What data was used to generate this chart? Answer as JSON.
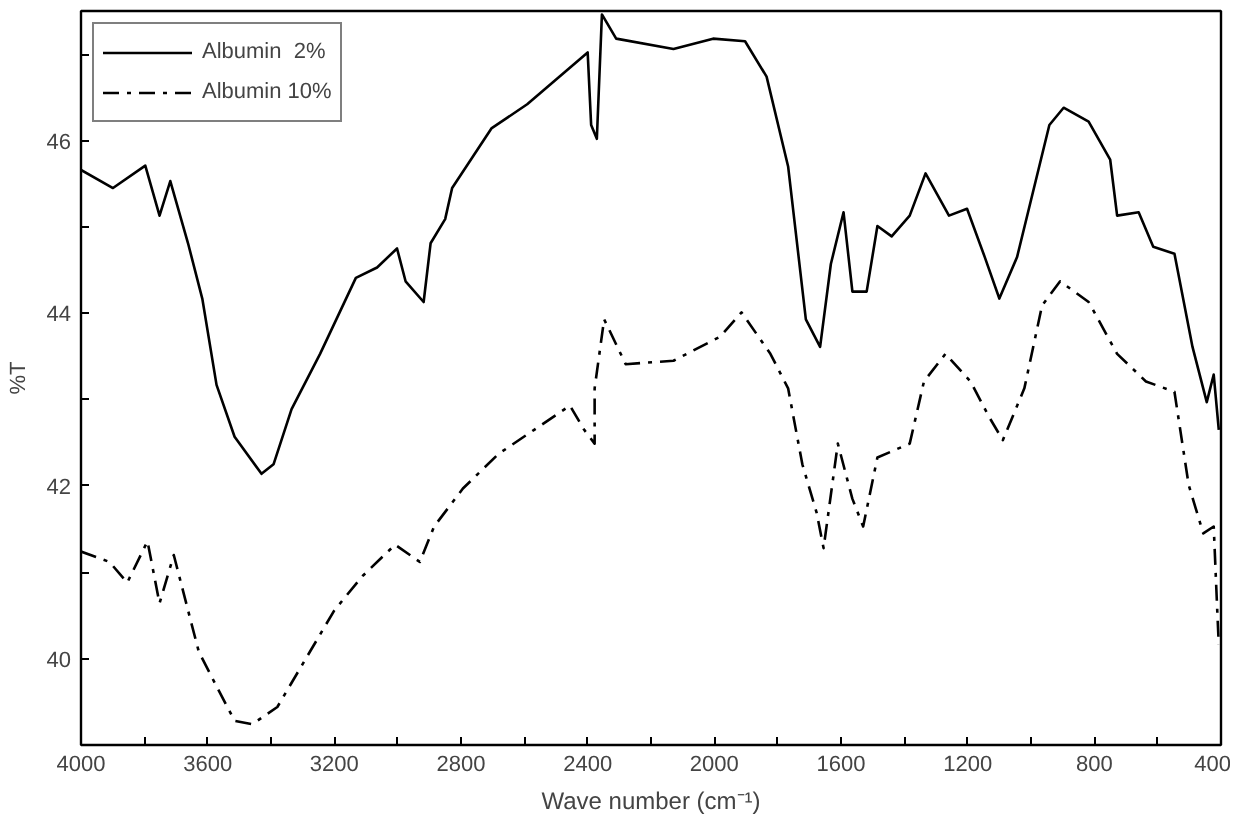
{
  "chart_data": {
    "type": "line",
    "xlabel": "Wave number (cm⁻¹)",
    "ylabel": "%T",
    "xlim": [
      4000,
      400
    ],
    "ylim": [
      39,
      47.5
    ],
    "xticks": [
      4000,
      {
        "value": 3800,
        "label": null
      },
      3600,
      {
        "value": 3400,
        "label": null
      },
      3200,
      {
        "value": 3000,
        "label": null
      },
      2800,
      {
        "value": 2600,
        "label": null
      },
      2400,
      {
        "value": 2200,
        "label": null
      },
      2000,
      {
        "value": 1800,
        "label": null
      },
      1600,
      {
        "value": 1400,
        "label": null
      },
      1200,
      {
        "value": 1000,
        "label": null
      },
      800,
      {
        "value": 600,
        "label": null
      },
      400
    ],
    "yticks": [
      40,
      {
        "value": 41,
        "label": null
      },
      42,
      {
        "value": 43,
        "label": null
      },
      44,
      {
        "value": 45,
        "label": null
      },
      46,
      {
        "value": 47,
        "label": null
      }
    ],
    "grid": false,
    "legend": "top left",
    "marker": "none",
    "series": [
      {
        "name": "Albumin  2%",
        "color": "#000000",
        "line_style": "solid",
        "x": [
          4000,
          3899,
          3797,
          3752,
          3718,
          3662,
          3617,
          3572,
          3515,
          3430,
          3392,
          3335,
          3245,
          3132,
          3065,
          3002,
          2975,
          2918,
          2896,
          2850,
          2828,
          2704,
          2591,
          2400,
          2389,
          2371,
          2355,
          2310,
          2129,
          2004,
          1903,
          1835,
          1767,
          1711,
          1666,
          1632,
          1592,
          1564,
          1519,
          1485,
          1440,
          1383,
          1333,
          1259,
          1202,
          1146,
          1100,
          1044,
          942,
          897,
          818,
          750,
          728,
          660,
          614,
          547,
          490,
          445,
          423,
          407
        ],
        "values": [
          45.66,
          45.45,
          45.71,
          45.13,
          45.53,
          44.81,
          44.17,
          43.17,
          42.57,
          42.14,
          42.25,
          42.89,
          43.53,
          44.41,
          44.53,
          44.75,
          44.37,
          44.13,
          44.81,
          45.09,
          45.45,
          46.14,
          46.42,
          47.02,
          46.18,
          46.02,
          47.46,
          47.18,
          47.06,
          47.18,
          47.15,
          46.74,
          45.7,
          43.93,
          43.61,
          44.57,
          45.17,
          44.25,
          44.25,
          45.01,
          44.89,
          45.13,
          45.62,
          45.13,
          45.21,
          44.65,
          44.17,
          44.65,
          46.18,
          46.38,
          46.22,
          45.78,
          45.13,
          45.17,
          44.77,
          44.69,
          43.61,
          42.97,
          43.29,
          42.65
        ]
      },
      {
        "name": "Albumin 10%",
        "color": "#000000",
        "line_style": "dashed",
        "x": [
          4000,
          3910,
          3854,
          3790,
          3752,
          3707,
          3662,
          3628,
          3572,
          3515,
          3459,
          3380,
          3290,
          3200,
          3110,
          3008,
          2930,
          2885,
          2794,
          2682,
          2569,
          2456,
          2411,
          2378,
          2378,
          2348,
          2280,
          2129,
          1981,
          1914,
          1823,
          1767,
          1722,
          1677,
          1655,
          1610,
          1564,
          1530,
          1485,
          1383,
          1338,
          1270,
          1191,
          1134,
          1089,
          1021,
          965,
          908,
          818,
          728,
          637,
          547,
          502,
          456,
          423,
          412,
          407
        ],
        "values": [
          41.24,
          41.12,
          40.88,
          41.36,
          40.64,
          41.2,
          40.56,
          40.08,
          39.68,
          39.28,
          39.24,
          39.44,
          40.0,
          40.56,
          40.96,
          41.32,
          41.12,
          41.53,
          41.97,
          42.37,
          42.65,
          42.93,
          42.65,
          42.49,
          43.13,
          43.93,
          43.41,
          43.45,
          43.73,
          44.01,
          43.53,
          43.13,
          42.25,
          41.69,
          41.28,
          42.49,
          41.85,
          41.53,
          42.33,
          42.49,
          43.21,
          43.53,
          43.21,
          42.81,
          42.53,
          43.13,
          44.09,
          44.37,
          44.13,
          43.53,
          43.21,
          43.09,
          42.01,
          41.45,
          41.53,
          40.57,
          40.16
        ]
      }
    ]
  }
}
